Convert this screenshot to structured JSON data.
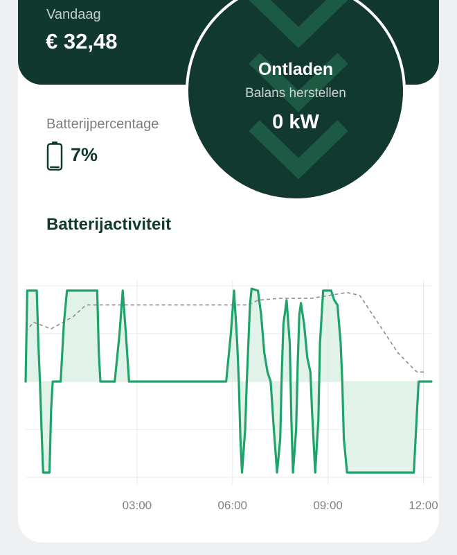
{
  "summary": {
    "today_label": "Vandaag",
    "today_value": "€ 32,48"
  },
  "status": {
    "title": "Ontladen",
    "subtitle": "Balans herstellen",
    "power": "0 kW",
    "icon": "chevron-down-icon"
  },
  "battery": {
    "label": "Batterijpercentage",
    "value": "7%",
    "level": 0.07,
    "icon": "battery-icon"
  },
  "activity": {
    "title": "Batterijactiviteit"
  },
  "colors": {
    "accent": "#1fa36a",
    "dark": "#11382f",
    "fill": "#d9efe4"
  },
  "chart_data": {
    "type": "line",
    "x_unit": "hours",
    "xlim": [
      -0.5,
      12.25
    ],
    "ylim": [
      -1,
      1
    ],
    "grid": true,
    "x_ticks": [
      {
        "x": 3,
        "label": "03:00"
      },
      {
        "x": 6,
        "label": "06:00"
      },
      {
        "x": 9,
        "label": "09:00"
      },
      {
        "x": 12,
        "label": "12:00"
      }
    ],
    "series": [
      {
        "style": "solid",
        "points": [
          [
            -0.5,
            0
          ],
          [
            -0.45,
            0.95
          ],
          [
            -0.15,
            0.95
          ],
          [
            -0.1,
            0.4
          ],
          [
            -0.05,
            0
          ],
          [
            0.0,
            -0.5
          ],
          [
            0.05,
            -0.95
          ],
          [
            0.25,
            -0.95
          ],
          [
            0.3,
            -0.3
          ],
          [
            0.35,
            0
          ],
          [
            0.6,
            0
          ],
          [
            0.7,
            0.6
          ],
          [
            0.8,
            0.95
          ],
          [
            1.25,
            0.95
          ],
          [
            1.4,
            0.95
          ],
          [
            1.5,
            0.95
          ],
          [
            1.75,
            0.95
          ],
          [
            1.8,
            0.3
          ],
          [
            1.85,
            0
          ],
          [
            2.3,
            0
          ],
          [
            2.45,
            0.5
          ],
          [
            2.55,
            0.95
          ],
          [
            2.65,
            0.5
          ],
          [
            2.75,
            0
          ],
          [
            5.8,
            0
          ],
          [
            5.95,
            0.5
          ],
          [
            6.05,
            0.95
          ],
          [
            6.15,
            0.4
          ],
          [
            6.2,
            0
          ],
          [
            6.25,
            -0.6
          ],
          [
            6.3,
            -0.95
          ],
          [
            6.4,
            -0.5
          ],
          [
            6.45,
            0
          ],
          [
            6.55,
            0.8
          ],
          [
            6.6,
            0.97
          ],
          [
            6.8,
            0.95
          ],
          [
            6.9,
            0.7
          ],
          [
            7.0,
            0.3
          ],
          [
            7.1,
            0.1
          ],
          [
            7.2,
            0
          ],
          [
            7.3,
            -0.5
          ],
          [
            7.4,
            -0.95
          ],
          [
            7.5,
            -0.6
          ],
          [
            7.55,
            0.1
          ],
          [
            7.6,
            0.6
          ],
          [
            7.7,
            0.85
          ],
          [
            7.8,
            0.4
          ],
          [
            7.85,
            -0.4
          ],
          [
            7.9,
            -0.95
          ],
          [
            8.0,
            -0.5
          ],
          [
            8.05,
            0.2
          ],
          [
            8.1,
            0.7
          ],
          [
            8.15,
            0.82
          ],
          [
            8.25,
            0.6
          ],
          [
            8.35,
            0.25
          ],
          [
            8.45,
            0.1
          ],
          [
            8.5,
            -0.3
          ],
          [
            8.6,
            -0.95
          ],
          [
            8.7,
            -0.4
          ],
          [
            8.75,
            0.4
          ],
          [
            8.85,
            0.95
          ],
          [
            9.1,
            0.95
          ],
          [
            9.2,
            0.85
          ],
          [
            9.3,
            0.8
          ],
          [
            9.4,
            0.4
          ],
          [
            9.45,
            0
          ],
          [
            9.5,
            -0.6
          ],
          [
            9.6,
            -0.95
          ],
          [
            11.7,
            -0.95
          ],
          [
            11.8,
            -0.3
          ],
          [
            11.85,
            0
          ],
          [
            12.25,
            0
          ]
        ]
      },
      {
        "style": "dashed",
        "points": [
          [
            -0.5,
            0.52
          ],
          [
            -0.25,
            0.62
          ],
          [
            0.3,
            0.55
          ],
          [
            1.0,
            0.68
          ],
          [
            1.4,
            0.8
          ],
          [
            2.0,
            0.8
          ],
          [
            5.0,
            0.8
          ],
          [
            6.5,
            0.8
          ],
          [
            6.8,
            0.85
          ],
          [
            7.5,
            0.87
          ],
          [
            8.5,
            0.87
          ],
          [
            9.6,
            0.93
          ],
          [
            10.0,
            0.9
          ],
          [
            10.6,
            0.6
          ],
          [
            11.2,
            0.3
          ],
          [
            11.7,
            0.13
          ],
          [
            11.8,
            0.1
          ],
          [
            12.1,
            0.1
          ]
        ]
      }
    ]
  }
}
